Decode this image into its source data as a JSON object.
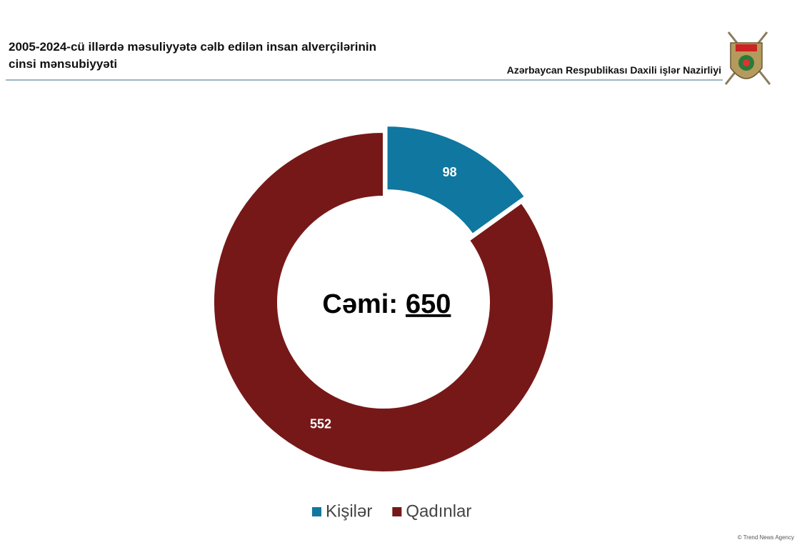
{
  "chart_data": {
    "type": "donut",
    "title": "2005-2024-cü illərdə məsuliyyətə cəlb edilən insan alverçilərinin cinsi mənsubiyyəti",
    "source": "Azərbaycan Respublikası Daxili işlər Nazirliyi",
    "total_label": "Cəmi:",
    "total": 650,
    "categories": [
      "Kişilər",
      "Qadınlar"
    ],
    "values": [
      98,
      552
    ],
    "colors": [
      "#0f77a0",
      "#771818"
    ],
    "exploded": [
      true,
      false
    ],
    "legend": "bottom",
    "watermark": "© Trend News Agency"
  }
}
